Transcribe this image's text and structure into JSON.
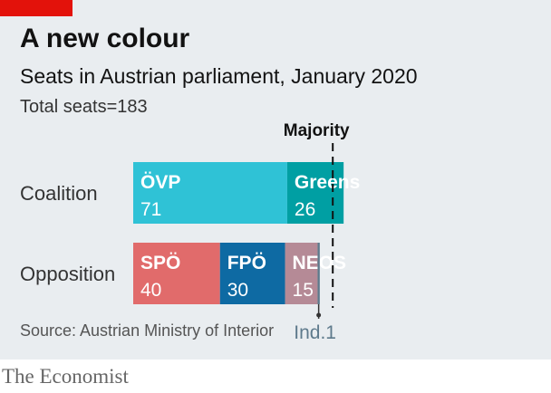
{
  "brand_bar_color": "#e3120b",
  "title": "A new colour",
  "subtitle": "Seats in Austrian parliament, January 2020",
  "note": "Total seats=183",
  "source": "Source: Austrian Ministry of Interior",
  "brand": "The Economist",
  "chart_data": {
    "type": "bar",
    "orientation": "horizontal",
    "stacked": true,
    "total": 183,
    "majority_label": "Majority",
    "majority_value": 92,
    "rows": [
      {
        "label": "Coalition",
        "segments": [
          {
            "name": "ÖVP",
            "value": 71,
            "color": "#2fc2d6"
          },
          {
            "name": "Greens",
            "value": 26,
            "color": "#009fa3"
          }
        ]
      },
      {
        "label": "Opposition",
        "segments": [
          {
            "name": "SPÖ",
            "value": 40,
            "color": "#e16b6b"
          },
          {
            "name": "FPÖ",
            "value": 30,
            "color": "#0e6aa3"
          },
          {
            "name": "NEOS",
            "value": 15,
            "color": "#b58a96"
          },
          {
            "name": "Ind.",
            "value": 1,
            "color": "#5e7a8c",
            "label": "Ind.1"
          }
        ]
      }
    ]
  }
}
